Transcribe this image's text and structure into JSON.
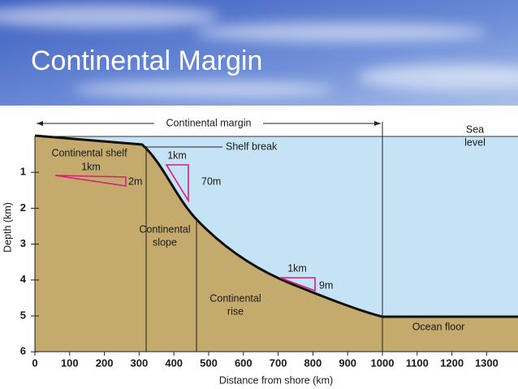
{
  "slide": {
    "title": "Continental Margin"
  },
  "diagram": {
    "margin_label": "Continental margin",
    "shelf_break_label": "Shelf break",
    "sea_level_label": [
      "Sea",
      "level"
    ],
    "shelf_label": "Continental shelf",
    "shelf_gradient": {
      "run": "1km",
      "drop": "2m"
    },
    "slope_gradient": {
      "run": "1km",
      "drop": "70m"
    },
    "slope_label": [
      "Continental",
      "slope"
    ],
    "rise_label": [
      "Continental",
      "rise"
    ],
    "rise_gradient": {
      "run": "1km",
      "drop": "9m"
    },
    "ocean_floor_label": "Ocean floor",
    "x_axis": {
      "title": "Distance from shore (km)",
      "ticks": [
        0,
        100,
        200,
        300,
        400,
        500,
        600,
        700,
        800,
        900,
        1000,
        1100,
        1200,
        1300
      ]
    },
    "y_axis": {
      "title": "Depth (km)",
      "ticks": [
        1,
        2,
        3,
        4,
        5,
        6
      ]
    }
  }
}
